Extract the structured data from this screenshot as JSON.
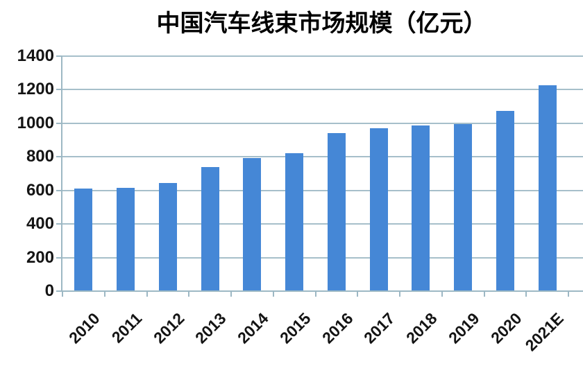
{
  "chart_data": {
    "type": "bar",
    "title": "中国汽车线束市场规模（亿元）",
    "xlabel": "",
    "ylabel": "",
    "categories": [
      "2010",
      "2011",
      "2012",
      "2013",
      "2014",
      "2015",
      "2016",
      "2017",
      "2018",
      "2019",
      "2020",
      "2021E"
    ],
    "values": [
      611,
      616,
      645,
      740,
      793,
      820,
      941,
      970,
      987,
      996,
      1075,
      1228
    ],
    "ylim": [
      0,
      1400
    ],
    "ytick_step": 200,
    "yticks": [
      0,
      200,
      400,
      600,
      800,
      1000,
      1200,
      1400
    ],
    "grid": true,
    "legend_position": "none",
    "bar_color": "#4587d6",
    "gridline_color": "#a6bfca",
    "axis_color": "#9db8c4",
    "text_color": "#141414",
    "background_color": "#ffffff"
  }
}
